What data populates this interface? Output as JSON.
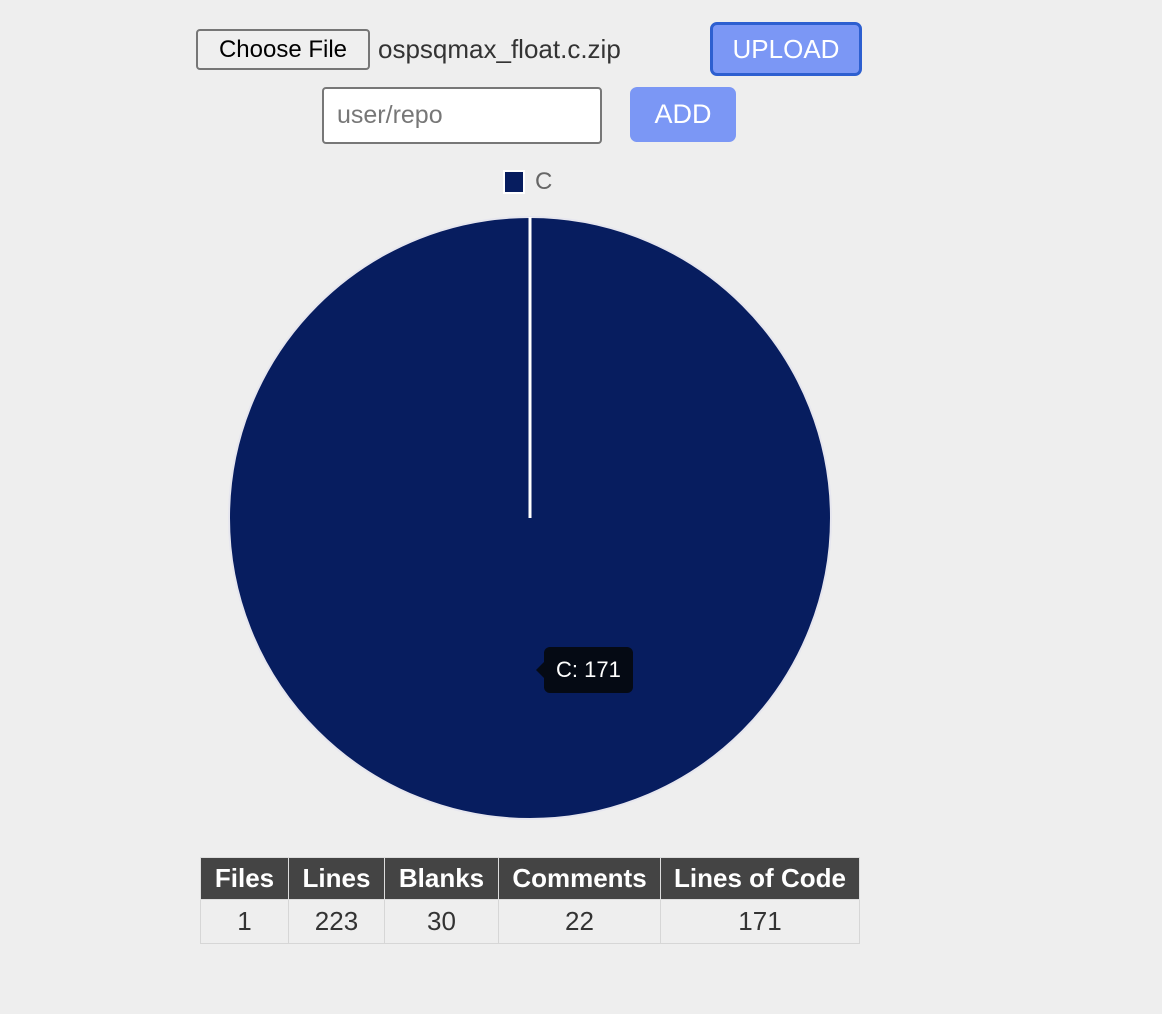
{
  "upload_form": {
    "choose_file_label": "Choose File",
    "selected_file": "ospsqmax_float.c.zip",
    "upload_label": "UPLOAD"
  },
  "repo_form": {
    "placeholder": "user/repo",
    "add_label": "ADD"
  },
  "chart_data": {
    "type": "pie",
    "legend_position": "top",
    "categories": [
      "C"
    ],
    "values": [
      171
    ],
    "colors": [
      "#071d5f"
    ],
    "tooltip": "C: 171"
  },
  "stats_table": {
    "headers": [
      "Files",
      "Lines",
      "Blanks",
      "Comments",
      "Lines of Code"
    ],
    "rows": [
      [
        "1",
        "223",
        "30",
        "22",
        "171"
      ]
    ]
  },
  "colors": {
    "background": "#eeeeee",
    "button_blue": "#7b97f5",
    "button_border_focus": "#2d5fd0",
    "table_header": "#444444"
  }
}
